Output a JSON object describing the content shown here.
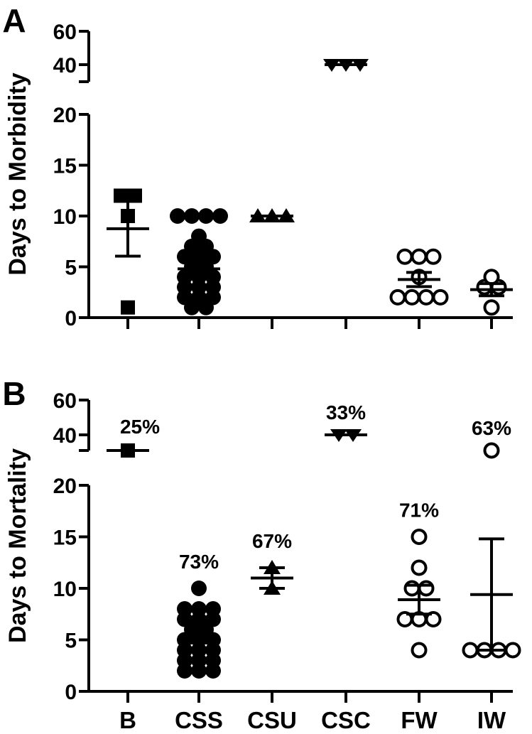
{
  "chart_data": [
    {
      "type": "scatter",
      "panel_label": "A",
      "ylabel": "Days to Morbidity",
      "categories": [
        "B",
        "CSS",
        "CSU",
        "CSC",
        "FW",
        "IW"
      ],
      "y_segments": [
        {
          "range": [
            0,
            20
          ],
          "ticks": [
            "0",
            "5",
            "10",
            "15",
            "20"
          ]
        },
        {
          "range": [
            35,
            60
          ],
          "ticks": [
            "40",
            "60"
          ]
        }
      ],
      "series": [
        {
          "category": "B",
          "marker": "square-filled",
          "points": [
            1,
            10,
            12,
            12
          ],
          "mean": 8.75,
          "sem": 2.7
        },
        {
          "category": "CSS",
          "marker": "circle-filled",
          "points": [
            1,
            1,
            2,
            2,
            2,
            3,
            3,
            3,
            4,
            4,
            4,
            5,
            5,
            6,
            6,
            6,
            7,
            7,
            8,
            10,
            10,
            10,
            10
          ],
          "mean": 4.8,
          "sem": 0.5
        },
        {
          "category": "CSU",
          "marker": "triangle-up-filled",
          "points": [
            10,
            10,
            10
          ],
          "mean": 10,
          "sem": 0
        },
        {
          "category": "CSC",
          "marker": "triangle-down-filled",
          "points": [
            40,
            40,
            40
          ],
          "mean": 40,
          "sem": 0
        },
        {
          "category": "FW",
          "marker": "circle-open",
          "points": [
            2,
            2,
            2,
            2,
            4,
            6,
            6,
            6
          ],
          "mean": 3.75,
          "sem": 0.7
        },
        {
          "category": "IW",
          "marker": "circle-open",
          "points": [
            1,
            3,
            3,
            4
          ],
          "mean": 2.75,
          "sem": 0.6
        }
      ]
    },
    {
      "type": "scatter",
      "panel_label": "B",
      "ylabel": "Days to Mortality",
      "categories": [
        "B",
        "CSS",
        "CSU",
        "CSC",
        "FW",
        "IW"
      ],
      "y_segments": [
        {
          "range": [
            0,
            20
          ],
          "ticks": [
            "0",
            "5",
            "10",
            "15",
            "20"
          ]
        },
        {
          "range": [
            35,
            60
          ],
          "ticks": [
            "40",
            "60"
          ]
        }
      ],
      "series": [
        {
          "category": "B",
          "marker": "square-filled",
          "points": [
            35
          ],
          "mean": 35,
          "sem": 0,
          "percent_label": "25%"
        },
        {
          "category": "CSS",
          "marker": "circle-filled",
          "points": [
            2,
            2,
            2,
            3,
            3,
            3,
            4,
            4,
            4,
            5,
            5,
            5,
            6,
            6,
            7,
            7,
            7,
            8,
            8,
            8,
            10
          ],
          "mean": 5.2,
          "sem": 0.5,
          "percent_label": "73%"
        },
        {
          "category": "CSU",
          "marker": "triangle-up-filled",
          "points": [
            10,
            12
          ],
          "mean": 11,
          "sem": 1,
          "percent_label": "67%"
        },
        {
          "category": "CSC",
          "marker": "triangle-down-filled",
          "points": [
            40,
            40
          ],
          "mean": 40,
          "sem": 0,
          "percent_label": "33%"
        },
        {
          "category": "FW",
          "marker": "circle-open",
          "points": [
            4,
            7,
            7,
            7,
            10,
            10,
            12,
            15
          ],
          "mean": 8.9,
          "sem": 1.4,
          "percent_label": "71%"
        },
        {
          "category": "IW",
          "marker": "circle-open",
          "points": [
            4,
            4,
            4,
            4,
            35
          ],
          "mean": 9.4,
          "sem": 5.4,
          "percent_label": "63%"
        }
      ]
    }
  ]
}
